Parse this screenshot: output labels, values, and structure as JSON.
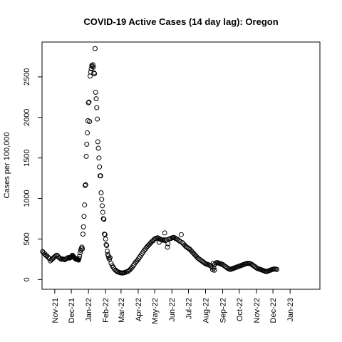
{
  "chart_data": {
    "type": "scatter",
    "title": "COVID-19 Active Cases (14 day lag): Oregon",
    "xlabel": "",
    "ylabel": "Cases per 100,000",
    "x_type": "date",
    "xlim": [
      "2021-10-09",
      "2023-02-24"
    ],
    "ylim": [
      -120,
      2930
    ],
    "grid": false,
    "legend": "none",
    "marker": "open-circle",
    "colors": {
      "marker": "#000000",
      "frame": "#000000",
      "background": "#ffffff"
    },
    "x_ticks": [
      {
        "date": "2021-11-01",
        "label": "Nov-21"
      },
      {
        "date": "2021-12-01",
        "label": "Dec-21"
      },
      {
        "date": "2022-01-01",
        "label": "Jan-22"
      },
      {
        "date": "2022-02-01",
        "label": "Feb-22"
      },
      {
        "date": "2022-03-01",
        "label": "Mar-22"
      },
      {
        "date": "2022-04-01",
        "label": "Apr-22"
      },
      {
        "date": "2022-05-01",
        "label": "May-22"
      },
      {
        "date": "2022-06-01",
        "label": "Jun-22"
      },
      {
        "date": "2022-07-01",
        "label": "Jul-22"
      },
      {
        "date": "2022-08-01",
        "label": "Aug-22"
      },
      {
        "date": "2022-09-01",
        "label": "Sep-22"
      },
      {
        "date": "2022-10-01",
        "label": "Oct-22"
      },
      {
        "date": "2022-11-01",
        "label": "Nov-22"
      },
      {
        "date": "2022-12-01",
        "label": "Dec-22"
      },
      {
        "date": "2023-01-01",
        "label": "Jan-23"
      }
    ],
    "y_ticks": [
      0,
      500,
      1000,
      1500,
      2000,
      2500
    ],
    "series": [
      {
        "points": [
          [
            "2021-10-10",
            345
          ],
          [
            "2021-10-12",
            330
          ],
          [
            "2021-10-14",
            315
          ],
          [
            "2021-10-16",
            300
          ],
          [
            "2021-10-18",
            290
          ],
          [
            "2021-10-20",
            275
          ],
          [
            "2021-10-22",
            260
          ],
          [
            "2021-10-24",
            230
          ],
          [
            "2021-10-26",
            245
          ],
          [
            "2021-10-28",
            255
          ],
          [
            "2021-10-30",
            270
          ],
          [
            "2021-11-01",
            280
          ],
          [
            "2021-11-03",
            295
          ],
          [
            "2021-11-05",
            300
          ],
          [
            "2021-11-07",
            285
          ],
          [
            "2021-11-09",
            270
          ],
          [
            "2021-11-11",
            260
          ],
          [
            "2021-11-13",
            250
          ],
          [
            "2021-11-15",
            255
          ],
          [
            "2021-11-17",
            250
          ],
          [
            "2021-11-19",
            245
          ],
          [
            "2021-11-21",
            255
          ],
          [
            "2021-11-23",
            260
          ],
          [
            "2021-11-25",
            270
          ],
          [
            "2021-11-27",
            270
          ],
          [
            "2021-11-28",
            265
          ],
          [
            "2021-11-29",
            270
          ],
          [
            "2021-11-30",
            275
          ],
          [
            "2021-12-01",
            280
          ],
          [
            "2021-12-02",
            290
          ],
          [
            "2021-12-03",
            300
          ],
          [
            "2021-12-04",
            290
          ],
          [
            "2021-12-05",
            280
          ],
          [
            "2021-12-06",
            275
          ],
          [
            "2021-12-07",
            265
          ],
          [
            "2021-12-08",
            260
          ],
          [
            "2021-12-09",
            255
          ],
          [
            "2021-12-10",
            250
          ],
          [
            "2021-12-11",
            255
          ],
          [
            "2021-12-12",
            250
          ],
          [
            "2021-12-13",
            245
          ],
          [
            "2021-12-14",
            240
          ],
          [
            "2021-12-15",
            260
          ],
          [
            "2021-12-16",
            290
          ],
          [
            "2021-12-17",
            330
          ],
          [
            "2021-12-18",
            360
          ],
          [
            "2021-12-19",
            380
          ],
          [
            "2021-12-20",
            400
          ],
          [
            "2021-12-21",
            380
          ],
          [
            "2021-12-22",
            560
          ],
          [
            "2021-12-23",
            650
          ],
          [
            "2021-12-24",
            780
          ],
          [
            "2021-12-25",
            920
          ],
          [
            "2021-12-26",
            1160
          ],
          [
            "2021-12-27",
            1170
          ],
          [
            "2021-12-28",
            1520
          ],
          [
            "2021-12-29",
            1670
          ],
          [
            "2021-12-30",
            1810
          ],
          [
            "2021-12-31",
            1960
          ],
          [
            "2022-01-01",
            2180
          ],
          [
            "2022-01-02",
            2190
          ],
          [
            "2022-01-03",
            1950
          ],
          [
            "2022-01-04",
            2510
          ],
          [
            "2022-01-05",
            2560
          ],
          [
            "2022-01-06",
            2600
          ],
          [
            "2022-01-07",
            2640
          ],
          [
            "2022-01-08",
            2630
          ],
          [
            "2022-01-09",
            2650
          ],
          [
            "2022-01-10",
            2620
          ],
          [
            "2022-01-11",
            2550
          ],
          [
            "2022-01-12",
            2540
          ],
          [
            "2022-01-13",
            2850
          ],
          [
            "2022-01-14",
            2310
          ],
          [
            "2022-01-15",
            2230
          ],
          [
            "2022-01-16",
            2120
          ],
          [
            "2022-01-17",
            1980
          ],
          [
            "2022-01-18",
            1700
          ],
          [
            "2022-01-19",
            1620
          ],
          [
            "2022-01-20",
            1500
          ],
          [
            "2022-01-21",
            1390
          ],
          [
            "2022-01-22",
            1280
          ],
          [
            "2022-01-23",
            1280
          ],
          [
            "2022-01-24",
            1070
          ],
          [
            "2022-01-25",
            990
          ],
          [
            "2022-01-26",
            910
          ],
          [
            "2022-01-27",
            830
          ],
          [
            "2022-01-28",
            750
          ],
          [
            "2022-01-29",
            745
          ],
          [
            "2022-01-30",
            560
          ],
          [
            "2022-01-31",
            555
          ],
          [
            "2022-02-01",
            500
          ],
          [
            "2022-02-02",
            430
          ],
          [
            "2022-02-03",
            420
          ],
          [
            "2022-02-04",
            350
          ],
          [
            "2022-02-05",
            310
          ],
          [
            "2022-02-06",
            290
          ],
          [
            "2022-02-07",
            265
          ],
          [
            "2022-02-08",
            250
          ],
          [
            "2022-02-09",
            270
          ],
          [
            "2022-02-11",
            200
          ],
          [
            "2022-02-13",
            170
          ],
          [
            "2022-02-15",
            150
          ],
          [
            "2022-02-17",
            130
          ],
          [
            "2022-02-19",
            115
          ],
          [
            "2022-02-21",
            105
          ],
          [
            "2022-02-23",
            95
          ],
          [
            "2022-02-25",
            90
          ],
          [
            "2022-02-27",
            85
          ],
          [
            "2022-03-01",
            82
          ],
          [
            "2022-03-03",
            80
          ],
          [
            "2022-03-05",
            82
          ],
          [
            "2022-03-07",
            85
          ],
          [
            "2022-03-09",
            90
          ],
          [
            "2022-03-11",
            95
          ],
          [
            "2022-03-13",
            100
          ],
          [
            "2022-03-15",
            110
          ],
          [
            "2022-03-17",
            120
          ],
          [
            "2022-03-19",
            135
          ],
          [
            "2022-03-21",
            150
          ],
          [
            "2022-03-23",
            170
          ],
          [
            "2022-03-25",
            190
          ],
          [
            "2022-03-27",
            210
          ],
          [
            "2022-03-29",
            225
          ],
          [
            "2022-03-31",
            240
          ],
          [
            "2022-04-02",
            260
          ],
          [
            "2022-04-04",
            280
          ],
          [
            "2022-04-06",
            300
          ],
          [
            "2022-04-08",
            320
          ],
          [
            "2022-04-10",
            340
          ],
          [
            "2022-04-12",
            360
          ],
          [
            "2022-04-14",
            375
          ],
          [
            "2022-04-16",
            395
          ],
          [
            "2022-04-18",
            410
          ],
          [
            "2022-04-20",
            425
          ],
          [
            "2022-04-22",
            440
          ],
          [
            "2022-04-24",
            455
          ],
          [
            "2022-04-26",
            470
          ],
          [
            "2022-04-28",
            480
          ],
          [
            "2022-04-30",
            495
          ],
          [
            "2022-05-02",
            505
          ],
          [
            "2022-05-04",
            510
          ],
          [
            "2022-05-06",
            515
          ],
          [
            "2022-05-08",
            510
          ],
          [
            "2022-05-09",
            460
          ],
          [
            "2022-05-10",
            500
          ],
          [
            "2022-05-12",
            495
          ],
          [
            "2022-05-14",
            490
          ],
          [
            "2022-05-16",
            485
          ],
          [
            "2022-05-18",
            490
          ],
          [
            "2022-05-19",
            575
          ],
          [
            "2022-05-20",
            480
          ],
          [
            "2022-05-22",
            490
          ],
          [
            "2022-05-24",
            400
          ],
          [
            "2022-05-25",
            440
          ],
          [
            "2022-05-27",
            500
          ],
          [
            "2022-05-29",
            505
          ],
          [
            "2022-05-31",
            510
          ],
          [
            "2022-06-02",
            515
          ],
          [
            "2022-06-04",
            520
          ],
          [
            "2022-06-06",
            515
          ],
          [
            "2022-06-08",
            505
          ],
          [
            "2022-06-10",
            500
          ],
          [
            "2022-06-12",
            490
          ],
          [
            "2022-06-14",
            480
          ],
          [
            "2022-06-16",
            470
          ],
          [
            "2022-06-18",
            555
          ],
          [
            "2022-06-20",
            455
          ],
          [
            "2022-06-22",
            440
          ],
          [
            "2022-06-24",
            425
          ],
          [
            "2022-06-26",
            410
          ],
          [
            "2022-06-28",
            400
          ],
          [
            "2022-06-30",
            390
          ],
          [
            "2022-07-02",
            380
          ],
          [
            "2022-07-04",
            370
          ],
          [
            "2022-07-06",
            355
          ],
          [
            "2022-07-08",
            340
          ],
          [
            "2022-07-10",
            325
          ],
          [
            "2022-07-12",
            310
          ],
          [
            "2022-07-14",
            295
          ],
          [
            "2022-07-16",
            280
          ],
          [
            "2022-07-18",
            265
          ],
          [
            "2022-07-20",
            255
          ],
          [
            "2022-07-22",
            245
          ],
          [
            "2022-07-24",
            235
          ],
          [
            "2022-07-26",
            225
          ],
          [
            "2022-07-28",
            215
          ],
          [
            "2022-07-30",
            205
          ],
          [
            "2022-08-01",
            195
          ],
          [
            "2022-08-03",
            190
          ],
          [
            "2022-08-05",
            185
          ],
          [
            "2022-08-07",
            180
          ],
          [
            "2022-08-09",
            175
          ],
          [
            "2022-08-11",
            165
          ],
          [
            "2022-08-13",
            150
          ],
          [
            "2022-08-14",
            120
          ],
          [
            "2022-08-15",
            200
          ],
          [
            "2022-08-16",
            140
          ],
          [
            "2022-08-17",
            115
          ],
          [
            "2022-08-18",
            190
          ],
          [
            "2022-08-20",
            205
          ],
          [
            "2022-08-22",
            210
          ],
          [
            "2022-08-24",
            205
          ],
          [
            "2022-08-26",
            200
          ],
          [
            "2022-08-28",
            195
          ],
          [
            "2022-08-30",
            190
          ],
          [
            "2022-09-01",
            185
          ],
          [
            "2022-09-03",
            175
          ],
          [
            "2022-09-05",
            165
          ],
          [
            "2022-09-07",
            155
          ],
          [
            "2022-09-09",
            145
          ],
          [
            "2022-09-11",
            135
          ],
          [
            "2022-09-13",
            130
          ],
          [
            "2022-09-15",
            125
          ],
          [
            "2022-09-17",
            130
          ],
          [
            "2022-09-19",
            135
          ],
          [
            "2022-09-21",
            140
          ],
          [
            "2022-09-23",
            145
          ],
          [
            "2022-09-25",
            150
          ],
          [
            "2022-09-27",
            155
          ],
          [
            "2022-09-29",
            160
          ],
          [
            "2022-10-01",
            165
          ],
          [
            "2022-10-03",
            170
          ],
          [
            "2022-10-05",
            175
          ],
          [
            "2022-10-07",
            180
          ],
          [
            "2022-10-09",
            185
          ],
          [
            "2022-10-11",
            190
          ],
          [
            "2022-10-13",
            195
          ],
          [
            "2022-10-15",
            200
          ],
          [
            "2022-10-17",
            200
          ],
          [
            "2022-10-19",
            200
          ],
          [
            "2022-10-21",
            195
          ],
          [
            "2022-10-23",
            190
          ],
          [
            "2022-10-25",
            180
          ],
          [
            "2022-10-27",
            170
          ],
          [
            "2022-10-29",
            160
          ],
          [
            "2022-10-31",
            150
          ],
          [
            "2022-11-02",
            140
          ],
          [
            "2022-11-04",
            135
          ],
          [
            "2022-11-06",
            130
          ],
          [
            "2022-11-08",
            125
          ],
          [
            "2022-11-10",
            120
          ],
          [
            "2022-11-12",
            115
          ],
          [
            "2022-11-14",
            110
          ],
          [
            "2022-11-16",
            105
          ],
          [
            "2022-11-18",
            100
          ],
          [
            "2022-11-20",
            100
          ],
          [
            "2022-11-22",
            105
          ],
          [
            "2022-11-24",
            110
          ],
          [
            "2022-11-26",
            115
          ],
          [
            "2022-11-28",
            120
          ],
          [
            "2022-11-30",
            125
          ],
          [
            "2022-12-02",
            128
          ],
          [
            "2022-12-04",
            130
          ],
          [
            "2022-12-06",
            128
          ],
          [
            "2022-12-08",
            125
          ]
        ]
      }
    ]
  }
}
